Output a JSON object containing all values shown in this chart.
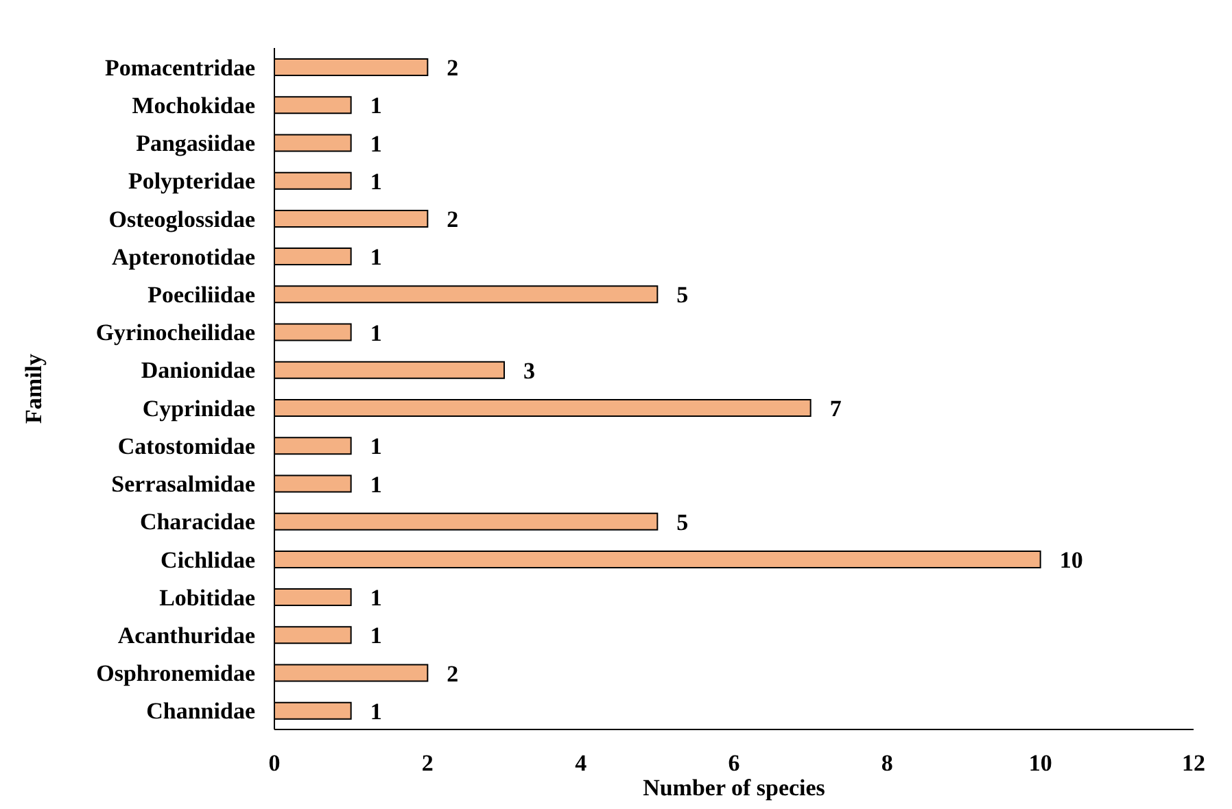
{
  "chart_data": {
    "type": "bar",
    "orientation": "horizontal",
    "xlabel": "Number of species",
    "ylabel": "Family",
    "categories": [
      "Pomacentridae",
      "Mochokidae",
      "Pangasiidae",
      "Polypteridae",
      "Osteoglossidae",
      "Apteronotidae",
      "Poeciliidae",
      "Gyrinocheilidae",
      "Danionidae",
      "Cyprinidae",
      "Catostomidae",
      "Serrasalmidae",
      "Characidae",
      "Cichlidae",
      "Lobitidae",
      "Acanthuridae",
      "Osphronemidae",
      "Channidae"
    ],
    "values": [
      2,
      1,
      1,
      1,
      2,
      1,
      5,
      1,
      3,
      7,
      1,
      1,
      5,
      10,
      1,
      1,
      2,
      1
    ],
    "color": "#f4b183",
    "xlim": [
      0,
      12
    ],
    "xticks": [
      0,
      2,
      4,
      6,
      8,
      10,
      12
    ],
    "grid": false,
    "data_labels": true
  }
}
